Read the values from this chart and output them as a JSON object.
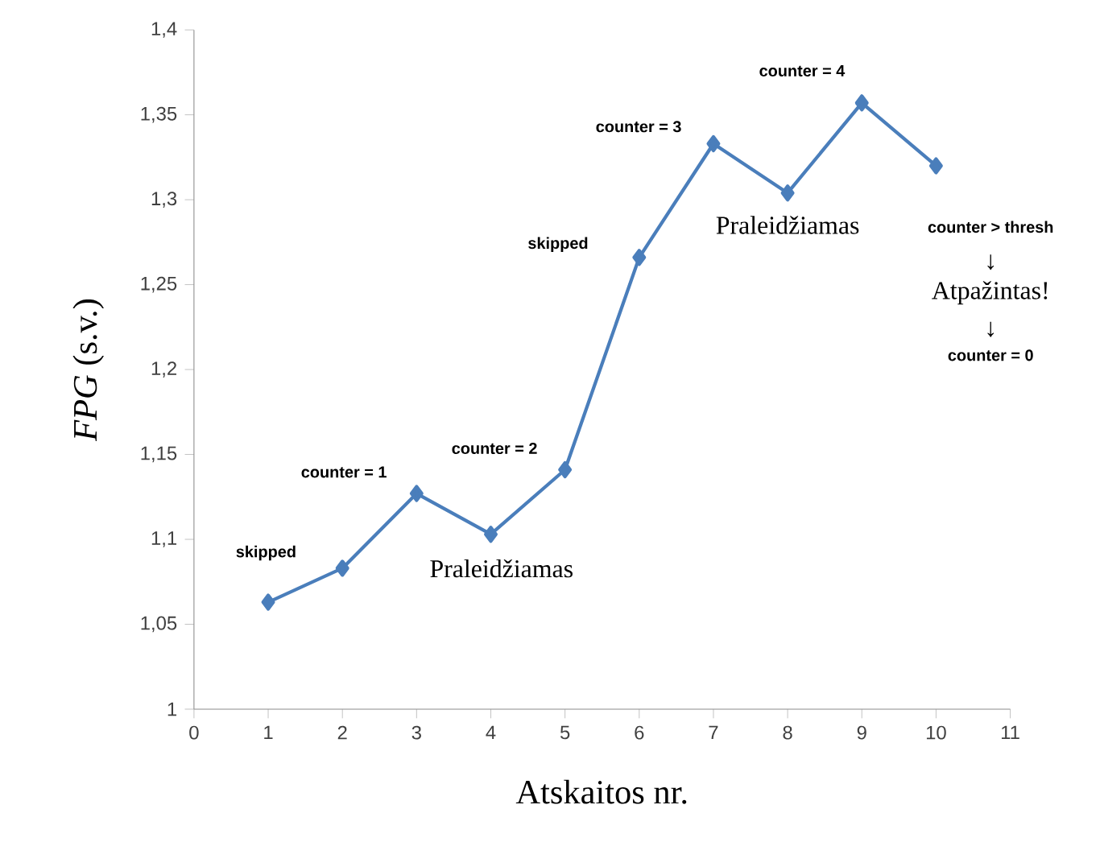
{
  "chart_data": {
    "type": "line",
    "xlabel": "Atskaitos nr.",
    "ylabel": "*FPG* (s.v.)",
    "x": [
      1,
      2,
      3,
      4,
      5,
      6,
      7,
      8,
      9,
      10
    ],
    "series": [
      {
        "color": "#4a7ebb",
        "values": [
          1.063,
          1.083,
          1.127,
          1.103,
          1.141,
          1.266,
          1.333,
          1.304,
          1.357,
          1.32
        ]
      }
    ],
    "xlim": [
      0,
      11
    ],
    "xticks": [
      0,
      1,
      2,
      3,
      4,
      5,
      6,
      7,
      8,
      9,
      10,
      11
    ],
    "ylim": [
      1,
      1.4
    ],
    "yticks": [
      {
        "value": 1,
        "label": "1"
      },
      {
        "value": 1.05,
        "label": "1,05"
      },
      {
        "value": 1.1,
        "label": "1,1"
      },
      {
        "value": 1.15,
        "label": "1,15"
      },
      {
        "value": 1.2,
        "label": "1,2"
      },
      {
        "value": 1.25,
        "label": "1,25"
      },
      {
        "value": 1.3,
        "label": "1,3"
      },
      {
        "value": 1.35,
        "label": "1,35"
      },
      {
        "value": 1.4,
        "label": "1,4"
      }
    ],
    "marker": "diamond",
    "line_style": "solid",
    "annotations": [
      {
        "text": "skipped",
        "x": 1,
        "y": 1.063
      },
      {
        "text": "counter = 1",
        "x": 3,
        "y": 1.127
      },
      {
        "text": "Praleidžiamas",
        "x": 4,
        "y": 1.103
      },
      {
        "text": "counter = 2",
        "x": 5,
        "y": 1.141
      },
      "skipped",
      {
        "text": "counter = 3",
        "x": 7,
        "y": 1.333
      },
      {
        "text": "Praleidžiamas",
        "x": 8,
        "y": 1.304
      },
      {
        "text": "counter = 4",
        "x": 9,
        "y": 1.357
      },
      "counter > thresh",
      "↓",
      "Atpažintas!",
      "↓",
      "counter = 0"
    ]
  }
}
